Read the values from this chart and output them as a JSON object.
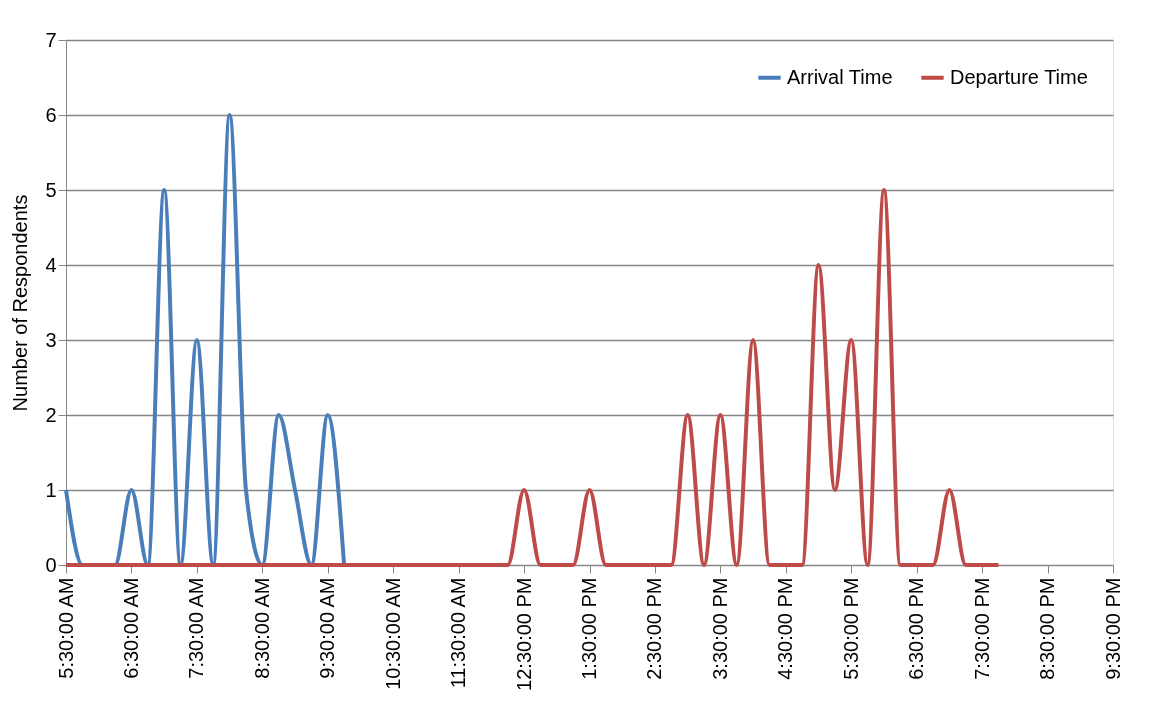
{
  "chart_data": {
    "type": "line",
    "ylabel": "Number of Respondents",
    "xlim": [
      5.5,
      21.5
    ],
    "xticks": [
      {
        "value": 5.5,
        "label": "5:30:00 AM"
      },
      {
        "value": 6.5,
        "label": "6:30:00 AM"
      },
      {
        "value": 7.5,
        "label": "7:30:00 AM"
      },
      {
        "value": 8.5,
        "label": "8:30:00 AM"
      },
      {
        "value": 9.5,
        "label": "9:30:00 AM"
      },
      {
        "value": 10.5,
        "label": "10:30:00 AM"
      },
      {
        "value": 11.5,
        "label": "11:30:00 AM"
      },
      {
        "value": 12.5,
        "label": "12:30:00 PM"
      },
      {
        "value": 13.5,
        "label": "1:30:00 PM"
      },
      {
        "value": 14.5,
        "label": "2:30:00 PM"
      },
      {
        "value": 15.5,
        "label": "3:30:00 PM"
      },
      {
        "value": 16.5,
        "label": "4:30:00 PM"
      },
      {
        "value": 17.5,
        "label": "5:30:00 PM"
      },
      {
        "value": 18.5,
        "label": "6:30:00 PM"
      },
      {
        "value": 19.5,
        "label": "7:30:00 PM"
      },
      {
        "value": 20.5,
        "label": "8:30:00 PM"
      },
      {
        "value": 21.5,
        "label": "9:30:00 PM"
      }
    ],
    "ylim": [
      0,
      7
    ],
    "yticks": [
      0,
      1,
      2,
      3,
      4,
      5,
      6,
      7
    ],
    "grid": "y",
    "legend": "top right",
    "marker": "none",
    "line_style": "solid",
    "series": [
      {
        "name": "Arrival Time",
        "color": "#4a7ebb",
        "x": [
          5.5,
          5.75,
          6.0,
          6.25,
          6.5,
          6.75,
          7.0,
          7.25,
          7.5,
          7.75,
          8.0,
          8.25,
          8.5,
          8.75,
          9.0,
          9.25,
          9.5,
          9.75
        ],
        "values": [
          1,
          0,
          0,
          0,
          1,
          0,
          5,
          0,
          3,
          0,
          6,
          1,
          0,
          2,
          1,
          0,
          2,
          0
        ]
      },
      {
        "name": "Departure Time",
        "color": "#be4b48",
        "x": [
          5.5,
          5.75,
          6.0,
          6.25,
          6.5,
          6.75,
          7.0,
          7.25,
          7.5,
          7.75,
          8.0,
          8.25,
          8.5,
          8.75,
          9.0,
          9.25,
          9.5,
          9.75,
          10.0,
          10.25,
          10.5,
          10.75,
          11.0,
          11.25,
          11.5,
          11.75,
          12.0,
          12.25,
          12.5,
          12.75,
          13.0,
          13.25,
          13.5,
          13.75,
          14.0,
          14.25,
          14.5,
          14.75,
          15.0,
          15.25,
          15.5,
          15.75,
          16.0,
          16.25,
          16.5,
          16.75,
          17.0,
          17.25,
          17.5,
          17.75,
          18.0,
          18.25,
          18.5,
          18.75,
          19.0,
          19.25,
          19.5,
          19.75
        ],
        "values": [
          0,
          0,
          0,
          0,
          0,
          0,
          0,
          0,
          0,
          0,
          0,
          0,
          0,
          0,
          0,
          0,
          0,
          0,
          0,
          0,
          0,
          0,
          0,
          0,
          0,
          0,
          0,
          0,
          1,
          0,
          0,
          0,
          1,
          0,
          0,
          0,
          0,
          0,
          2,
          0,
          2,
          0,
          3,
          0,
          0,
          0,
          4,
          1,
          3,
          0,
          5,
          0,
          0,
          0,
          1,
          0,
          0,
          0
        ]
      }
    ]
  }
}
